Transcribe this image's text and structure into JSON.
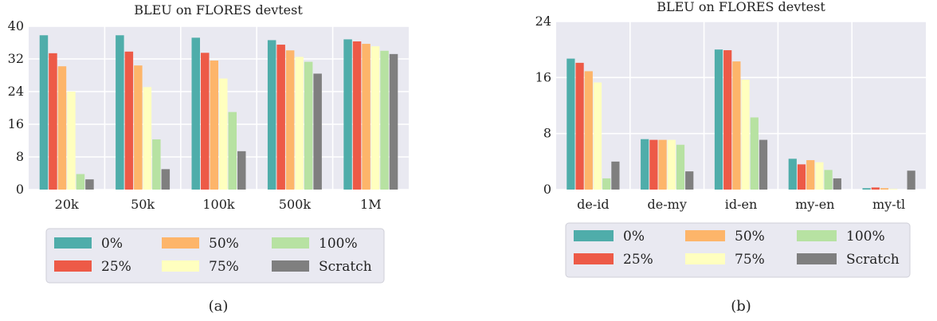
{
  "series_colors": [
    "#4fadaa",
    "#ed5a47",
    "#fdb56a",
    "#ffffbf",
    "#b7e2a2",
    "#7f7f7f"
  ],
  "background": "#e9e9f1",
  "chart_data": [
    {
      "type": "bar",
      "title": "BLEU on FLORES devtest",
      "caption": "(a)",
      "categories": [
        "20k",
        "50k",
        "100k",
        "500k",
        "1M"
      ],
      "ylim": [
        0,
        40
      ],
      "yticks": [
        "0",
        "8",
        "16",
        "24",
        "32",
        "40"
      ],
      "grid": true,
      "legend_position": "bottom",
      "series": [
        {
          "name": "0%",
          "values": [
            37.8,
            37.8,
            37.2,
            36.6,
            36.8
          ]
        },
        {
          "name": "25%",
          "values": [
            33.4,
            33.8,
            33.5,
            35.5,
            36.3
          ]
        },
        {
          "name": "50%",
          "values": [
            30.2,
            30.4,
            31.6,
            34.1,
            35.7
          ]
        },
        {
          "name": "75%",
          "values": [
            24.0,
            25.1,
            27.2,
            32.5,
            35.1
          ]
        },
        {
          "name": "100%",
          "values": [
            3.8,
            12.3,
            19.0,
            31.3,
            34.0
          ]
        },
        {
          "name": "Scratch",
          "values": [
            2.5,
            5.0,
            9.4,
            28.4,
            33.2
          ]
        }
      ]
    },
    {
      "type": "bar",
      "title": "BLEU on FLORES devtest",
      "caption": "(b)",
      "categories": [
        "de-id",
        "de-my",
        "id-en",
        "my-en",
        "my-tl"
      ],
      "ylim": [
        0,
        24
      ],
      "yticks": [
        "0",
        "8",
        "16",
        "24"
      ],
      "grid": true,
      "legend_position": "bottom",
      "series": [
        {
          "name": "0%",
          "values": [
            18.7,
            7.2,
            20.0,
            4.4,
            0.2
          ]
        },
        {
          "name": "25%",
          "values": [
            18.1,
            7.1,
            19.9,
            3.6,
            0.3
          ]
        },
        {
          "name": "50%",
          "values": [
            16.9,
            7.1,
            18.3,
            4.2,
            0.2
          ]
        },
        {
          "name": "75%",
          "values": [
            15.3,
            7.1,
            15.7,
            3.9,
            0.1
          ]
        },
        {
          "name": "100%",
          "values": [
            1.6,
            6.4,
            10.3,
            2.8,
            0.0
          ]
        },
        {
          "name": "Scratch",
          "values": [
            4.0,
            2.6,
            7.1,
            1.6,
            2.7
          ]
        }
      ]
    }
  ]
}
